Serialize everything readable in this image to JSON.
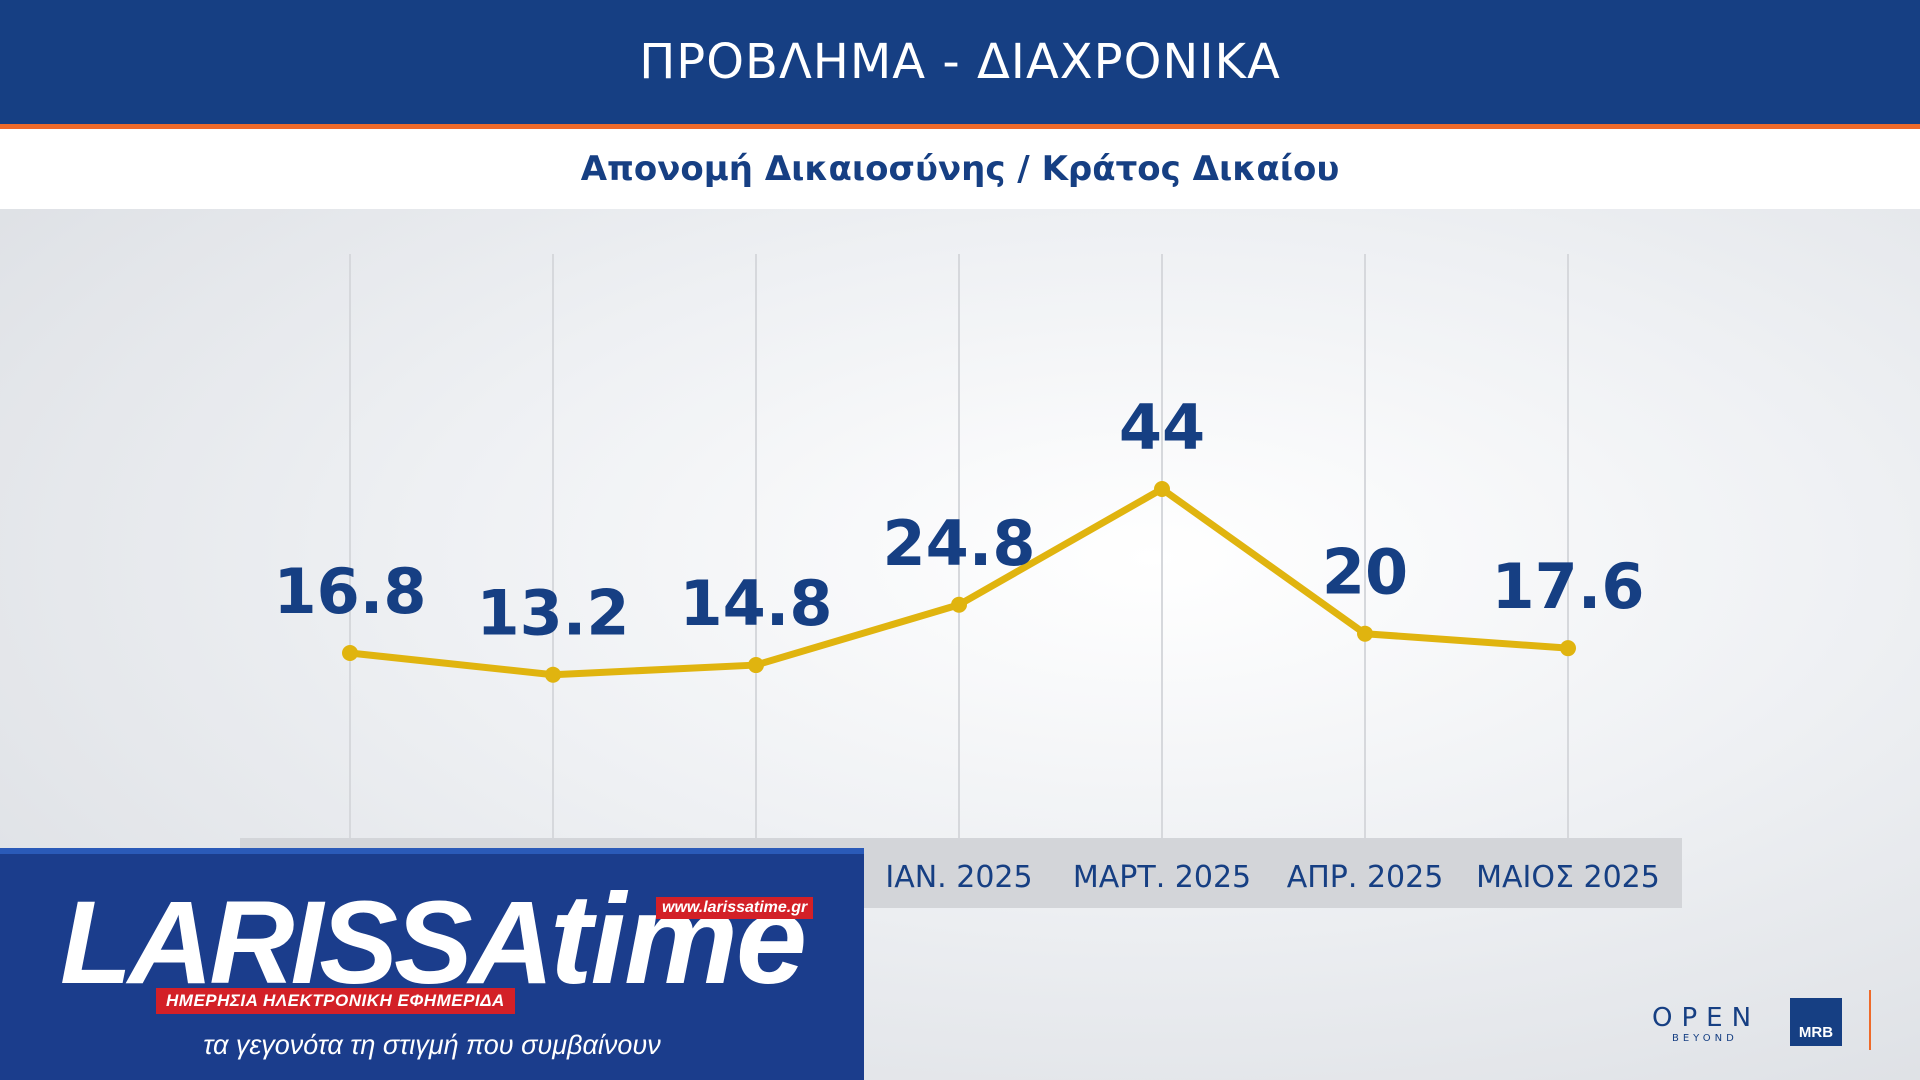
{
  "header": {
    "title": "ΠΡΟΒΛΗΜΑ - ΔΙΑΧΡΟΝΙΚΑ",
    "subtitle": "Απονομή Δικαιοσύνης / Κράτος Δικαίου"
  },
  "chart_data": {
    "type": "line",
    "title": "ΠΡΟΒΛΗΜΑ - ΔΙΑΧΡΟΝΙΚΑ",
    "subtitle": "Απονομή Δικαιοσύνης / Κράτος Δικαίου",
    "categories": [
      "",
      "",
      "",
      "ΙΑΝ. 2025",
      "ΜΑΡΤ. 2025",
      "ΑΠΡ. 2025",
      "ΜΑΙΟΣ 2025"
    ],
    "series": [
      {
        "values": [
          16.8,
          13.2,
          14.8,
          24.8,
          44,
          20,
          17.6
        ],
        "labels": [
          "16.8",
          "13.2",
          "14.8",
          "24.8",
          "44",
          "20",
          "17.6"
        ]
      }
    ],
    "ylim": [
      0,
      50
    ],
    "grid": "vertical",
    "line_color": "#e0b40f",
    "label_color": "#163f83"
  },
  "banner": {
    "brand": "LARISSA",
    "brand_suffix": "time",
    "url": "www.larissatime.gr",
    "tagline": "ΗΜΕΡΗΣΙΑ ΗΛΕΚΤΡΟΝΙΚΗ ΕΦΗΜΕΡΙΔΑ",
    "slogan": "τα γεγονότα τη στιγμή που συμβαίνουν"
  },
  "logos": {
    "open": "OPEN",
    "open_sub": "BEYOND",
    "mrb": "MRB"
  }
}
